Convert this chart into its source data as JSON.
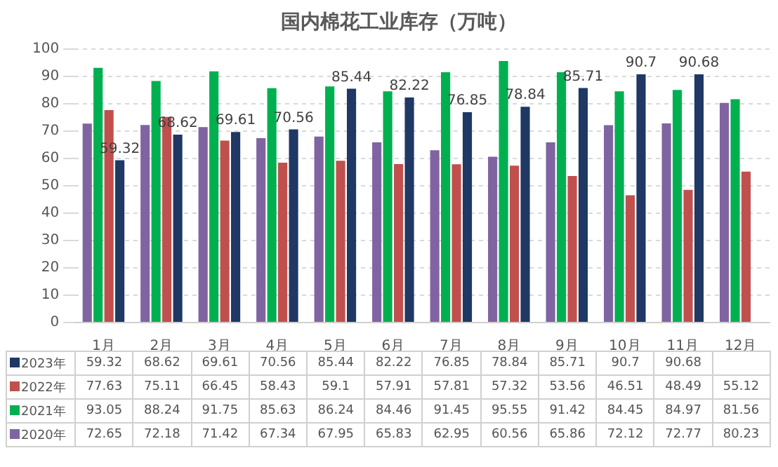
{
  "chart_data": {
    "type": "bar",
    "title": "国内棉花工业库存（万吨）",
    "categories": [
      "1月",
      "2月",
      "3月",
      "4月",
      "5月",
      "6月",
      "7月",
      "8月",
      "9月",
      "10月",
      "11月",
      "12月"
    ],
    "series": [
      {
        "name": "2020年",
        "color": "#8064a2",
        "values": [
          72.65,
          72.18,
          71.42,
          67.34,
          67.95,
          65.83,
          62.95,
          60.56,
          65.86,
          72.12,
          72.77,
          80.23
        ]
      },
      {
        "name": "2021年",
        "color": "#00b050",
        "values": [
          93.05,
          88.24,
          91.75,
          85.63,
          86.24,
          84.46,
          91.45,
          95.55,
          91.42,
          84.45,
          84.97,
          81.56
        ]
      },
      {
        "name": "2022年",
        "color": "#c0504d",
        "values": [
          77.63,
          75.11,
          66.45,
          58.43,
          59.1,
          57.91,
          57.81,
          57.32,
          53.56,
          46.51,
          48.49,
          55.12
        ]
      },
      {
        "name": "2023年",
        "color": "#1f3864",
        "values": [
          59.32,
          68.62,
          69.61,
          70.56,
          85.44,
          82.22,
          76.85,
          78.84,
          85.71,
          90.7,
          90.68,
          null
        ],
        "value_labels": [
          "59.32",
          "68.62",
          "69.61",
          "70.56",
          "85.44",
          "82.22",
          "76.85",
          "78.84",
          "85.71",
          "90.7",
          "90.68",
          null
        ]
      }
    ],
    "ylim": [
      0,
      100
    ],
    "yticks": [
      0,
      10,
      20,
      30,
      40,
      50,
      60,
      70,
      80,
      90,
      100
    ],
    "grid": "y",
    "legend": "bottom",
    "data_labels": true
  }
}
